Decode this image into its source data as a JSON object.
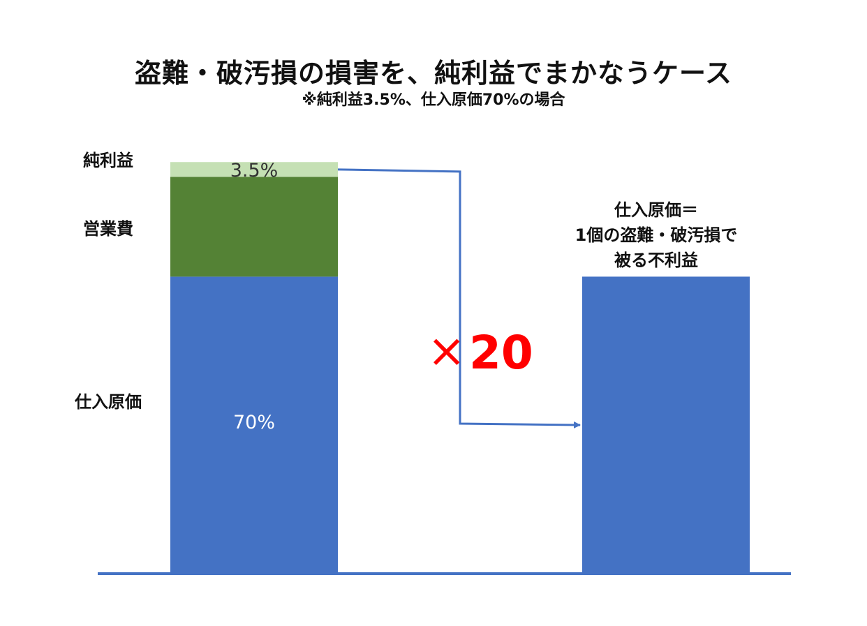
{
  "title": "盗難・破汚損の損害を、純利益でまかなうケース",
  "subtitle": "※純利益3.5%、仕入原価70%の場合",
  "chart_data": {
    "type": "bar",
    "stacked": true,
    "categories": [
      "",
      ""
    ],
    "ylim": [
      0,
      100
    ],
    "grid": false,
    "legend": "none",
    "series": [
      {
        "name": "仕入原価",
        "values": [
          70,
          70
        ],
        "color": "#4472c4",
        "labels": [
          "70%",
          ""
        ],
        "label_color": "#ffffff"
      },
      {
        "name": "営業費",
        "values": [
          23.5,
          0
        ],
        "color": "#548235",
        "labels": [
          "",
          ""
        ],
        "label_color": "#ffffff"
      },
      {
        "name": "純利益",
        "values": [
          3.5,
          0
        ],
        "color": "#c5e0b4",
        "labels": [
          "3.5%",
          ""
        ],
        "label_color": "#333333"
      }
    ],
    "segment_labels": [
      "純利益",
      "営業費",
      "仕入原価"
    ],
    "right_bar_label": [
      "仕入原価＝",
      "1個の盗難・破汚損で",
      "被る不利益"
    ],
    "multiplier": {
      "sign": "×",
      "value": "20"
    },
    "colors": {
      "arrow": "#4472c4",
      "axis": "#4472c4",
      "multiplier": "#ff0000"
    }
  }
}
